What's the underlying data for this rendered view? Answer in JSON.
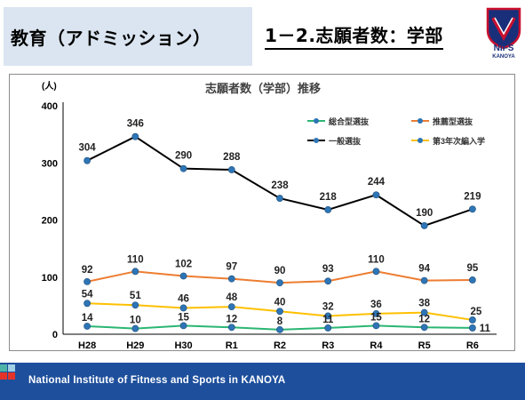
{
  "header": {
    "section_title": "教育（アドミッション）",
    "slide_title": "1－2.志願者数：学部"
  },
  "logo": {
    "top_text": "KANOYA",
    "main_text": "NIFS",
    "sub_text": "KANOYA"
  },
  "footer": {
    "text": "National Institute of Fitness and Sports in KANOYA",
    "colors": {
      "bar": "#1e4f9c",
      "square_red": "#e63329",
      "square_teal": "#4fb4a8",
      "square_light": "#9fd0e6"
    }
  },
  "chart_data": {
    "type": "line",
    "title": "志願者数（学部）推移",
    "ylabel": "(人)",
    "xlabel": "",
    "categories": [
      "H28",
      "H29",
      "H30",
      "R1",
      "R2",
      "R3",
      "R4",
      "R5",
      "R6"
    ],
    "ylim": [
      0,
      400
    ],
    "yticks": [
      0,
      100,
      200,
      300,
      400
    ],
    "grid": false,
    "legend_position": "top-right",
    "series": [
      {
        "name": "総合型選抜",
        "color": "#2bb673",
        "marker_color": "#2e75b6",
        "values": [
          14,
          10,
          15,
          12,
          8,
          11,
          15,
          12,
          11
        ]
      },
      {
        "name": "推薦型選抜",
        "color": "#ed7d31",
        "marker_color": "#2e75b6",
        "values": [
          92,
          110,
          102,
          97,
          90,
          93,
          110,
          94,
          95
        ]
      },
      {
        "name": "一般選抜",
        "color": "#000000",
        "marker_color": "#2e75b6",
        "values": [
          304,
          346,
          290,
          288,
          238,
          218,
          244,
          190,
          219
        ]
      },
      {
        "name": "第3年次編入学",
        "color": "#ffc000",
        "marker_color": "#2e75b6",
        "values": [
          54,
          51,
          46,
          48,
          40,
          32,
          36,
          38,
          25
        ]
      }
    ]
  }
}
